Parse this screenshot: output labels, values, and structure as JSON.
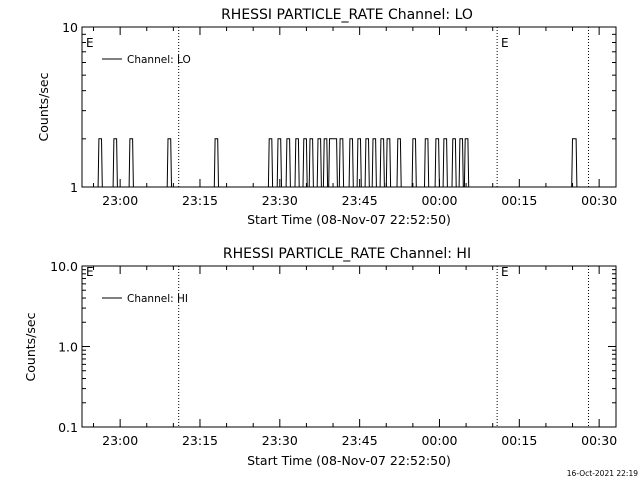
{
  "stamp": "16-Oct-2021 22:19",
  "chart_data": [
    {
      "type": "line",
      "title": "RHESSI PARTICLE_RATE Channel: LO",
      "xlabel": "Start Time (08-Nov-07 22:52:50)",
      "ylabel": "Counts/sec",
      "yscale": "log",
      "ylim": [
        1,
        10
      ],
      "ytick_labels": [
        "1",
        "10"
      ],
      "xlim": [
        "22:52:50",
        "00:33:10"
      ],
      "xtick_labels": [
        "23:00",
        "23:15",
        "23:30",
        "23:45",
        "00:00",
        "00:15",
        "00:30"
      ],
      "legend": "top-left",
      "series": [
        {
          "name": "Channel: LO",
          "x": [
            "22:56:00",
            "22:56:30",
            "22:58:50",
            "22:59:20",
            "23:01:50",
            "23:02:20",
            "23:09:00",
            "23:09:30",
            "23:17:50",
            "23:18:20",
            "23:28:00",
            "23:28:30",
            "23:29:40",
            "23:30:10",
            "23:31:20",
            "23:31:50",
            "23:33:00",
            "23:33:30",
            "23:34:30",
            "23:35:00",
            "23:35:40",
            "23:36:10",
            "23:37:10",
            "23:37:40",
            "23:38:20",
            "23:38:50",
            "23:39:20",
            "23:40:40",
            "23:41:20",
            "23:41:50",
            "23:43:10",
            "23:43:40",
            "23:44:40",
            "23:45:10",
            "23:46:10",
            "23:46:40",
            "23:47:30",
            "23:48:00",
            "23:49:00",
            "23:49:30",
            "23:50:10",
            "23:50:40",
            "23:52:10",
            "23:52:40",
            "23:55:00",
            "23:55:30",
            "23:57:20",
            "23:57:50",
            "23:59:20",
            "23:59:50",
            "00:00:50",
            "00:01:20",
            "00:02:30",
            "00:03:00",
            "00:03:50",
            "00:04:20",
            "00:04:50",
            "00:05:20",
            "00:25:00",
            "00:25:40"
          ],
          "y": [
            2,
            2,
            2,
            2,
            2,
            2,
            2,
            2,
            2,
            2,
            2,
            2,
            2,
            2,
            2,
            2,
            2,
            2,
            2,
            2,
            2,
            2,
            2,
            2,
            2,
            2,
            2,
            2,
            2,
            2,
            2,
            2,
            2,
            2,
            2,
            2,
            2,
            2,
            2,
            2,
            2,
            2,
            2,
            2,
            2,
            2,
            2,
            2,
            2,
            2,
            2,
            2,
            2,
            2,
            2,
            2,
            2,
            2,
            2,
            2
          ],
          "baseline": 1
        }
      ],
      "event_lines": [
        "23:11:00",
        "00:10:50",
        "00:28:00"
      ],
      "event_labels": [
        "E",
        "E"
      ]
    },
    {
      "type": "line",
      "title": "RHESSI PARTICLE_RATE Channel: HI",
      "xlabel": "Start Time (08-Nov-07 22:52:50)",
      "ylabel": "Counts/sec",
      "yscale": "log",
      "ylim": [
        0.1,
        10
      ],
      "ytick_labels": [
        "0.1",
        "1.0",
        "10.0"
      ],
      "xlim": [
        "22:52:50",
        "00:33:10"
      ],
      "xtick_labels": [
        "23:00",
        "23:15",
        "23:30",
        "23:45",
        "00:00",
        "00:15",
        "00:30"
      ],
      "legend": "top-left",
      "series": [
        {
          "name": "Channel: HI",
          "x": [],
          "y": []
        }
      ],
      "event_lines": [
        "23:11:00",
        "00:10:50",
        "00:28:00"
      ],
      "event_labels": [
        "E",
        "E"
      ]
    }
  ]
}
